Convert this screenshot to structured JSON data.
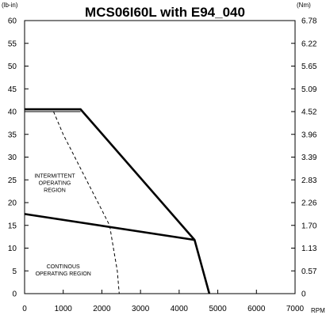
{
  "chart_data": {
    "type": "line",
    "title": "MCS06I60L with E94_040",
    "left_unit": "(lb-in)",
    "right_unit": "(Nm)",
    "x_unit": "RPM",
    "xlim": [
      0,
      7000
    ],
    "ylim": [
      0,
      60
    ],
    "x_ticks": [
      "0",
      "1000",
      "2000",
      "3000",
      "4000",
      "5000",
      "6000",
      "7000"
    ],
    "y_ticks": [
      "0",
      "5",
      "10",
      "15",
      "20",
      "25",
      "30",
      "35",
      "40",
      "45",
      "50",
      "55",
      "60"
    ],
    "y2_ticks": [
      "0",
      "0.57",
      "1.13",
      "1.70",
      "2.26",
      "2.83",
      "3.39",
      "3.96",
      "4.52",
      "5.09",
      "5.65",
      "6.22",
      "6.78"
    ],
    "grid": false,
    "series": [
      {
        "style": "solid-thick",
        "x": [
          0,
          1450,
          4400,
          4780
        ],
        "y": [
          40.5,
          40.5,
          11.8,
          0
        ]
      },
      {
        "style": "solid-thick",
        "x": [
          0,
          4400
        ],
        "y": [
          17.5,
          11.8
        ]
      },
      {
        "style": "solid-thin",
        "x": [
          0,
          1450
        ],
        "y": [
          40.0,
          40.0
        ]
      },
      {
        "style": "dashed",
        "x": [
          750,
          1000,
          1300,
          1600,
          1900,
          2200,
          2300,
          2400,
          2450
        ],
        "y": [
          40.0,
          35.0,
          30.0,
          25.0,
          20.0,
          15.0,
          10.0,
          5.0,
          0
        ]
      }
    ],
    "annotations": [
      {
        "lines": [
          "INTERMITTENT",
          "OPERATING",
          "REGION"
        ],
        "x": 780,
        "y": 25.5
      },
      {
        "lines": [
          "CONTINOUS",
          "OPERATING REGION"
        ],
        "x": 1000,
        "y": 5.6
      }
    ]
  }
}
